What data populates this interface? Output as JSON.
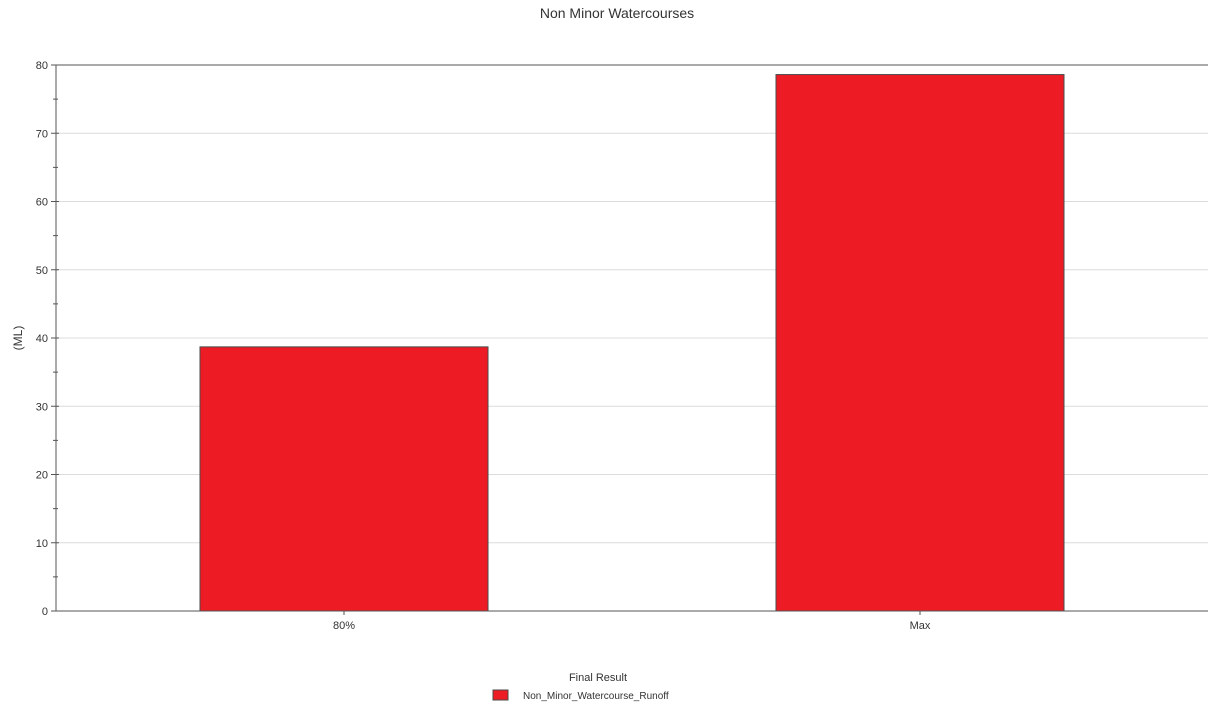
{
  "chart_data": {
    "type": "bar",
    "title": "Non Minor Watercourses",
    "xlabel": "",
    "ylabel": "(ML)",
    "categories": [
      "80%",
      "Max"
    ],
    "series": [
      {
        "name": "Non_Minor_Watercourse_Runoff",
        "values": [
          38.7,
          78.6
        ],
        "color": "#ed1c24"
      }
    ],
    "ylim": [
      0,
      80
    ],
    "yticks": [
      0,
      10,
      20,
      30,
      40,
      50,
      60,
      70,
      80
    ],
    "grid": "horizontal",
    "legend": {
      "title": "Final Result",
      "placement": "bottom-center"
    }
  }
}
